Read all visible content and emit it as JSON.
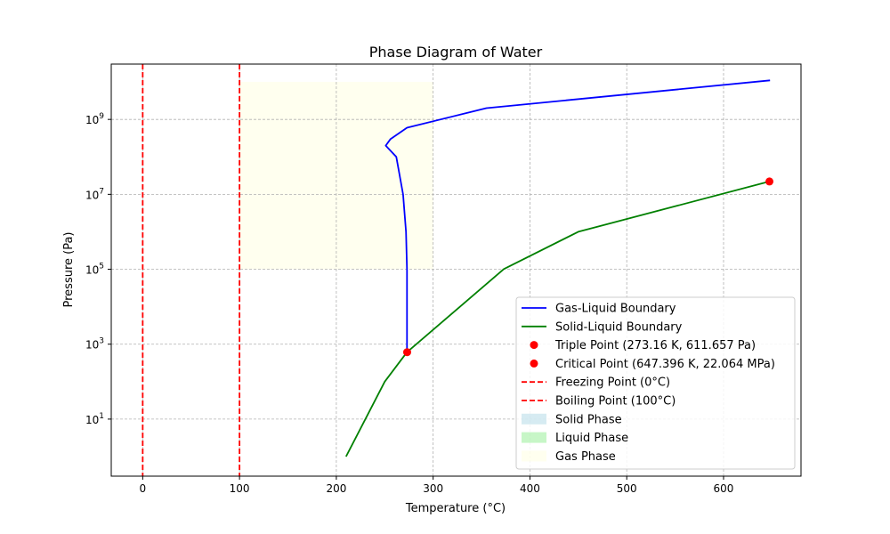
{
  "chart_data": {
    "type": "line",
    "title": "Phase Diagram of Water",
    "xlabel": "Temperature (°C)",
    "ylabel": "Pressure (Pa)",
    "xscale": "linear",
    "yscale": "log",
    "xlim": [
      -32.5,
      680
    ],
    "ylim": [
      0.3,
      30000000000
    ],
    "xticks": [
      0,
      100,
      200,
      300,
      400,
      500,
      600
    ],
    "xtick_labels": [
      "0",
      "100",
      "200",
      "300",
      "400",
      "500",
      "600"
    ],
    "yticks": [
      10,
      1000,
      100000,
      10000000,
      1000000000
    ],
    "ytick_labels": [
      {
        "base": "10",
        "exp": "1"
      },
      {
        "base": "10",
        "exp": "3"
      },
      {
        "base": "10",
        "exp": "5"
      },
      {
        "base": "10",
        "exp": "7"
      },
      {
        "base": "10",
        "exp": "9"
      }
    ],
    "grid": true,
    "legend_position": "lower right",
    "series": [
      {
        "name": "Gas-Liquid Boundary",
        "kind": "line",
        "color": "#0000ff",
        "points": [
          [
            273,
            611.657
          ],
          [
            273,
            100000
          ],
          [
            272,
            1000000
          ],
          [
            269,
            10000000
          ],
          [
            262,
            100000000
          ],
          [
            251,
            200000000
          ],
          [
            256,
            300000000
          ],
          [
            273,
            600000000
          ],
          [
            355,
            2000000000
          ],
          [
            648,
            11000000000
          ]
        ]
      },
      {
        "name": "Solid-Liquid Boundary",
        "kind": "line",
        "color": "#008000",
        "points": [
          [
            210,
            1
          ],
          [
            250,
            100
          ],
          [
            273,
            611.657
          ],
          [
            373,
            101325
          ],
          [
            450,
            1000000
          ],
          [
            647.396,
            22064000
          ]
        ]
      },
      {
        "name": "Triple Point (273.16 K, 611.657 Pa)",
        "kind": "point",
        "color": "#ff0000",
        "x": 273.16,
        "y": 611.657
      },
      {
        "name": "Critical Point (647.396 K, 22.064 MPa)",
        "kind": "point",
        "color": "#ff0000",
        "x": 647.396,
        "y": 22064000
      },
      {
        "name": "Freezing Point (0°C)",
        "kind": "vline",
        "color": "#ff0000",
        "x": 0
      },
      {
        "name": "Boiling Point (100°C)",
        "kind": "vline",
        "color": "#ff0000",
        "x": 100
      },
      {
        "name": "Solid Phase",
        "kind": "region",
        "color": "#add8e6",
        "opacity": 0.5
      },
      {
        "name": "Liquid Phase",
        "kind": "region",
        "color": "#90ee90",
        "opacity": 0.5
      },
      {
        "name": "Gas Phase",
        "kind": "region",
        "color": "#ffffe0",
        "opacity": 0.5,
        "x": [
          100,
          300
        ],
        "y": [
          100000,
          10000000000
        ]
      }
    ]
  }
}
